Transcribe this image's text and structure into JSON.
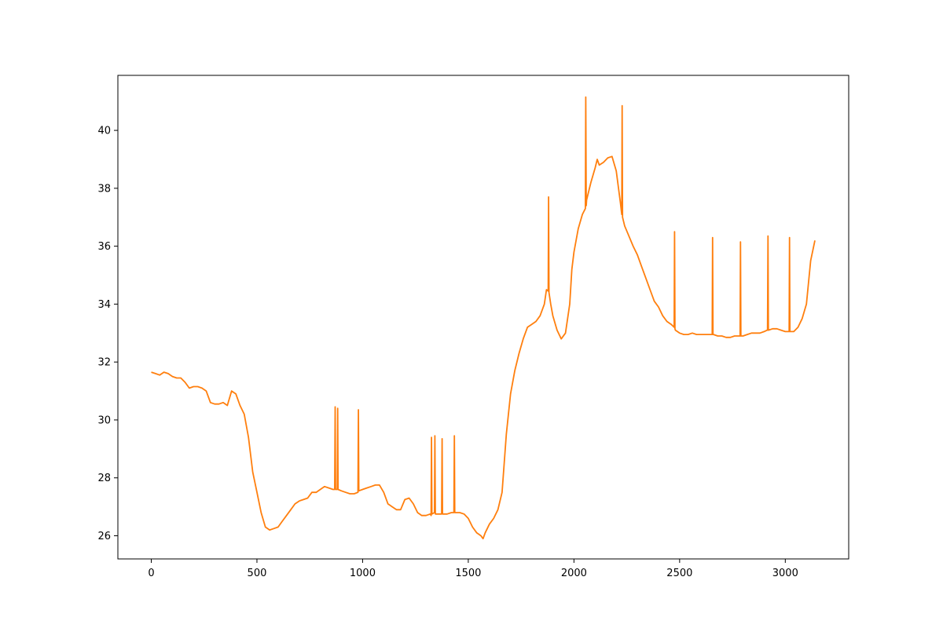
{
  "chart_data": {
    "type": "line",
    "title": "",
    "xlabel": "",
    "ylabel": "",
    "xlim": [
      -158,
      3300
    ],
    "ylim": [
      25.2,
      41.9
    ],
    "xticks": [
      0,
      500,
      1000,
      1500,
      2000,
      2500,
      3000
    ],
    "yticks": [
      26,
      28,
      30,
      32,
      34,
      36,
      38,
      40
    ],
    "grid": false,
    "legend": "none",
    "line_color": "#ff7f0e",
    "series": [
      {
        "x": [
          0,
          20,
          40,
          60,
          80,
          100,
          120,
          140,
          160,
          180,
          200,
          220,
          240,
          260,
          280,
          300,
          320,
          340,
          360,
          380,
          400,
          420,
          440,
          460,
          480,
          500,
          520,
          540,
          560,
          580,
          600,
          620,
          640,
          660,
          680,
          700,
          720,
          740,
          760,
          780,
          800,
          820,
          840,
          860,
          868,
          870,
          872,
          880,
          882,
          884,
          900,
          920,
          940,
          960,
          978,
          980,
          982,
          1000,
          1020,
          1040,
          1060,
          1080,
          1100,
          1120,
          1140,
          1160,
          1180,
          1200,
          1220,
          1240,
          1260,
          1280,
          1300,
          1320,
          1324,
          1326,
          1328,
          1340,
          1342,
          1344,
          1360,
          1374,
          1376,
          1378,
          1400,
          1420,
          1432,
          1434,
          1436,
          1460,
          1480,
          1500,
          1520,
          1540,
          1560,
          1570,
          1580,
          1600,
          1620,
          1640,
          1660,
          1680,
          1700,
          1720,
          1740,
          1760,
          1780,
          1800,
          1820,
          1840,
          1860,
          1870,
          1878,
          1880,
          1882,
          1890,
          1900,
          1920,
          1940,
          1960,
          1980,
          1990,
          2000,
          2020,
          2040,
          2054,
          2056,
          2058,
          2060,
          2080,
          2100,
          2110,
          2120,
          2140,
          2160,
          2180,
          2200,
          2220,
          2226,
          2228,
          2230,
          2240,
          2260,
          2280,
          2300,
          2320,
          2340,
          2360,
          2380,
          2400,
          2420,
          2440,
          2460,
          2474,
          2476,
          2478,
          2480,
          2500,
          2520,
          2540,
          2560,
          2580,
          2600,
          2620,
          2640,
          2654,
          2656,
          2658,
          2660,
          2680,
          2700,
          2720,
          2740,
          2760,
          2780,
          2786,
          2788,
          2790,
          2800,
          2820,
          2840,
          2860,
          2880,
          2900,
          2914,
          2916,
          2918,
          2920,
          2940,
          2960,
          2980,
          3000,
          3018,
          3020,
          3022,
          3040,
          3060,
          3080,
          3100,
          3120,
          3140
        ],
        "y": [
          31.65,
          31.6,
          31.55,
          31.65,
          31.6,
          31.5,
          31.45,
          31.45,
          31.3,
          31.1,
          31.15,
          31.15,
          31.1,
          31.0,
          30.6,
          30.55,
          30.55,
          30.6,
          30.5,
          31.0,
          30.9,
          30.5,
          30.2,
          29.4,
          28.2,
          27.5,
          26.8,
          26.3,
          26.2,
          26.25,
          26.3,
          26.5,
          26.7,
          26.9,
          27.1,
          27.2,
          27.25,
          27.3,
          27.5,
          27.5,
          27.6,
          27.7,
          27.65,
          27.6,
          27.6,
          30.45,
          27.6,
          27.6,
          30.4,
          27.6,
          27.55,
          27.5,
          27.45,
          27.45,
          27.5,
          30.35,
          27.55,
          27.6,
          27.65,
          27.7,
          27.75,
          27.75,
          27.5,
          27.1,
          27.0,
          26.9,
          26.9,
          27.25,
          27.3,
          27.1,
          26.8,
          26.7,
          26.7,
          26.75,
          26.7,
          29.4,
          26.75,
          26.8,
          29.45,
          26.75,
          26.75,
          26.75,
          29.35,
          26.75,
          26.75,
          26.8,
          26.8,
          29.45,
          26.8,
          26.8,
          26.75,
          26.6,
          26.3,
          26.1,
          26.0,
          25.9,
          26.1,
          26.4,
          26.6,
          26.9,
          27.5,
          29.5,
          30.9,
          31.7,
          32.3,
          32.8,
          33.2,
          33.3,
          33.4,
          33.6,
          34.0,
          34.5,
          34.45,
          37.7,
          34.4,
          34.0,
          33.6,
          33.1,
          32.8,
          33.0,
          34.0,
          35.2,
          35.8,
          36.6,
          37.1,
          37.3,
          41.15,
          37.4,
          37.6,
          38.2,
          38.7,
          39.0,
          38.8,
          38.9,
          39.05,
          39.1,
          38.6,
          37.5,
          37.1,
          40.85,
          37.0,
          36.7,
          36.35,
          36.0,
          35.7,
          35.3,
          34.9,
          34.5,
          34.1,
          33.9,
          33.6,
          33.4,
          33.3,
          33.2,
          36.5,
          33.15,
          33.1,
          33.0,
          32.95,
          32.95,
          33.0,
          32.95,
          32.95,
          32.95,
          32.95,
          32.95,
          36.3,
          32.95,
          32.95,
          32.9,
          32.9,
          32.85,
          32.85,
          32.9,
          32.9,
          32.9,
          36.15,
          32.9,
          32.9,
          32.95,
          33.0,
          33.0,
          33.0,
          33.05,
          33.1,
          33.1,
          36.35,
          33.1,
          33.15,
          33.15,
          33.1,
          33.05,
          33.05,
          36.3,
          33.05,
          33.05,
          33.2,
          33.5,
          34.0,
          35.5,
          36.2
        ]
      }
    ]
  }
}
